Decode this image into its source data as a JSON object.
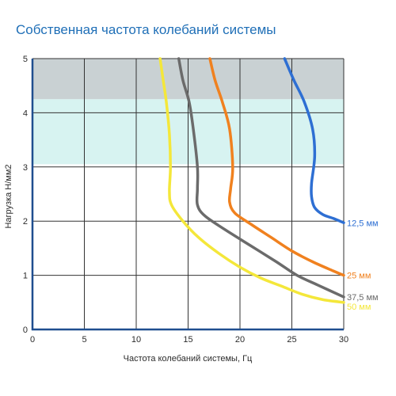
{
  "chart_data": {
    "type": "line",
    "title": "Собственная частота колебаний системы",
    "xlabel": "Частота колебаний системы, Гц",
    "ylabel": "Нагрузка Н/мм2",
    "xlim": [
      0,
      30
    ],
    "ylim": [
      0,
      5
    ],
    "xticks": [
      "0",
      "5",
      "10",
      "15",
      "20",
      "25",
      "30"
    ],
    "yticks": [
      "0",
      "1",
      "2",
      "3",
      "4",
      "5"
    ],
    "grid": true,
    "bands": [
      {
        "y_from": 4.25,
        "y_to": 5,
        "color": "#c9d1d3"
      },
      {
        "y_from": 3.05,
        "y_to": 4.25,
        "color": "#d7f3f1"
      }
    ],
    "series": [
      {
        "name": "12,5 мм",
        "color": "#2e6fd3",
        "points": [
          [
            24.3,
            5
          ],
          [
            25.2,
            4.6
          ],
          [
            26.2,
            4.2
          ],
          [
            27.0,
            3.7
          ],
          [
            27.2,
            3.2
          ],
          [
            26.9,
            2.7
          ],
          [
            26.9,
            2.45
          ],
          [
            27.2,
            2.25
          ],
          [
            28.0,
            2.12
          ],
          [
            29.0,
            2.05
          ],
          [
            30,
            1.97
          ]
        ]
      },
      {
        "name": "25 мм",
        "color": "#f0811f",
        "points": [
          [
            17.1,
            5
          ],
          [
            17.6,
            4.6
          ],
          [
            18.3,
            4.2
          ],
          [
            19.0,
            3.7
          ],
          [
            19.3,
            3.0
          ],
          [
            19.1,
            2.6
          ],
          [
            19.0,
            2.35
          ],
          [
            19.5,
            2.15
          ],
          [
            21.0,
            1.95
          ],
          [
            23.0,
            1.7
          ],
          [
            25.0,
            1.45
          ],
          [
            27.0,
            1.25
          ],
          [
            29.0,
            1.08
          ],
          [
            30,
            1.0
          ]
        ]
      },
      {
        "name": "37,5 мм",
        "color": "#6b6b6b",
        "points": [
          [
            14.1,
            5
          ],
          [
            14.5,
            4.6
          ],
          [
            15.1,
            4.2
          ],
          [
            15.5,
            3.7
          ],
          [
            15.9,
            3.0
          ],
          [
            15.9,
            2.6
          ],
          [
            15.9,
            2.3
          ],
          [
            16.6,
            2.1
          ],
          [
            18.5,
            1.85
          ],
          [
            21.0,
            1.55
          ],
          [
            23.5,
            1.25
          ],
          [
            25.5,
            1.0
          ],
          [
            27.5,
            0.82
          ],
          [
            30,
            0.6
          ]
        ]
      },
      {
        "name": "50 мм",
        "color": "#f4e73a",
        "points": [
          [
            12.3,
            5
          ],
          [
            12.6,
            4.6
          ],
          [
            12.9,
            4.2
          ],
          [
            13.2,
            3.6
          ],
          [
            13.3,
            3.0
          ],
          [
            13.2,
            2.55
          ],
          [
            13.4,
            2.3
          ],
          [
            14.5,
            2.0
          ],
          [
            16.0,
            1.7
          ],
          [
            18.0,
            1.4
          ],
          [
            20.0,
            1.15
          ],
          [
            22.0,
            0.95
          ],
          [
            24.0,
            0.8
          ],
          [
            26.0,
            0.65
          ],
          [
            28.0,
            0.55
          ],
          [
            30,
            0.5
          ]
        ]
      }
    ]
  }
}
